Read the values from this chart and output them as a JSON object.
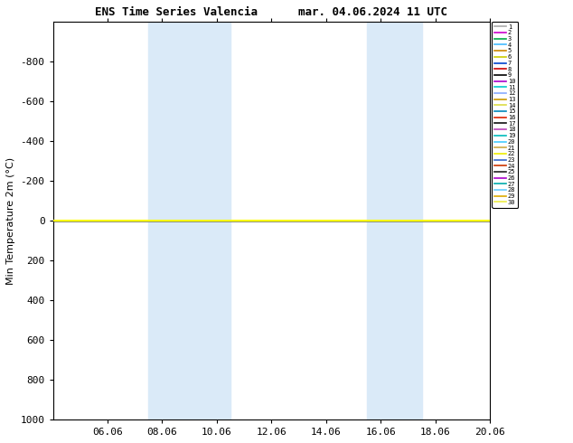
{
  "title": "ENS Time Series Valencia",
  "title2": "mar. 04.06.2024 11 UTC",
  "ylabel": "Min Temperature 2m (°C)",
  "xtick_labels": [
    "06.06",
    "08.06",
    "10.06",
    "12.06",
    "14.06",
    "16.06",
    "18.06",
    "20.06"
  ],
  "xtick_positions": [
    2,
    4,
    6,
    8,
    10,
    12,
    14,
    16
  ],
  "xlim": [
    0,
    16
  ],
  "ylim_top": -1000,
  "ylim_bottom": 1000,
  "yticks": [
    -800,
    -600,
    -400,
    -200,
    0,
    200,
    400,
    600,
    800,
    1000
  ],
  "shaded_regions": [
    [
      3.5,
      5.5
    ],
    [
      5.5,
      6.5
    ],
    [
      11.5,
      12.5
    ],
    [
      12.5,
      13.5
    ]
  ],
  "shaded_color": "#daeaf8",
  "horizontal_line_color": "#ffff00",
  "background_color": "#ffffff",
  "plot_bg_color": "#ffffff",
  "legend_members": [
    {
      "label": "1",
      "color": "#aaaaaa"
    },
    {
      "label": "2",
      "color": "#cc00cc"
    },
    {
      "label": "3",
      "color": "#00aa44"
    },
    {
      "label": "4",
      "color": "#44bbff"
    },
    {
      "label": "5",
      "color": "#cc8800"
    },
    {
      "label": "6",
      "color": "#cccc00"
    },
    {
      "label": "7",
      "color": "#0044cc"
    },
    {
      "label": "8",
      "color": "#cc0000"
    },
    {
      "label": "9",
      "color": "#000000"
    },
    {
      "label": "10",
      "color": "#aa00cc"
    },
    {
      "label": "11",
      "color": "#00cccc"
    },
    {
      "label": "12",
      "color": "#88aaff"
    },
    {
      "label": "13",
      "color": "#cc9900"
    },
    {
      "label": "14",
      "color": "#dddd44"
    },
    {
      "label": "15",
      "color": "#0088bb"
    },
    {
      "label": "16",
      "color": "#dd2200"
    },
    {
      "label": "17",
      "color": "#111111"
    },
    {
      "label": "18",
      "color": "#bb44bb"
    },
    {
      "label": "19",
      "color": "#00bbbb"
    },
    {
      "label": "20",
      "color": "#44ccff"
    },
    {
      "label": "21",
      "color": "#ccaa44"
    },
    {
      "label": "22",
      "color": "#eeee00"
    },
    {
      "label": "23",
      "color": "#3366cc"
    },
    {
      "label": "24",
      "color": "#cc3300"
    },
    {
      "label": "25",
      "color": "#222222"
    },
    {
      "label": "26",
      "color": "#aa00cc"
    },
    {
      "label": "27",
      "color": "#00aaaa"
    },
    {
      "label": "28",
      "color": "#66ccff"
    },
    {
      "label": "29",
      "color": "#ddaa00"
    },
    {
      "label": "30",
      "color": "#eeee44"
    }
  ],
  "line_y_value": 0,
  "figwidth": 6.34,
  "figheight": 4.9,
  "dpi": 100
}
